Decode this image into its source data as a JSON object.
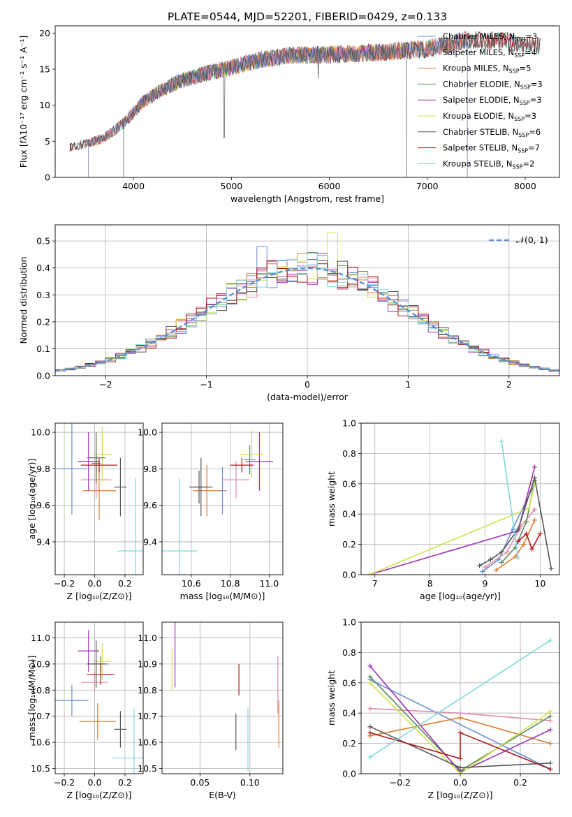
{
  "suptitle": "PLATE=0544, MJD=52201, FIBERID=0429, z=0.133",
  "palette": {
    "Chabrier MILES": "#6a8fd8",
    "Salpeter MILES": "#e08aa8",
    "Kroupa MILES": "#e07b2c",
    "Chabrier ELODIE": "#5a8a5a",
    "Salpeter ELODIE": "#9b30b0",
    "Kroupa ELODIE": "#cfe34a",
    "Chabrier STELIB": "#555555",
    "Salpeter STELIB": "#b01818",
    "Kroupa STELIB": "#80d8dc"
  },
  "chart_data": [
    {
      "id": "spectrum",
      "type": "line",
      "xlabel": "wavelength [Angstrom, rest frame]",
      "ylabel": "Flux [fλ10⁻¹⁷ erg cm⁻² s⁻¹ A⁻¹]",
      "xlim": [
        3200,
        8350
      ],
      "ylim": [
        0,
        21
      ],
      "grid": false,
      "xticks": [
        4000,
        5000,
        6000,
        7000,
        8000
      ],
      "yticks": [
        0,
        5,
        10,
        15,
        20
      ],
      "legend": "top-right",
      "legend_entries": [
        "Chabrier MILES, N",
        "Salpeter MILES, N",
        "Kroupa MILES, N",
        "Chabrier ELODIE, N",
        "Salpeter ELODIE, N",
        "Kroupa ELODIE, N",
        "Chabrier STELIB, N",
        "Salpeter STELIB, N",
        "Kroupa STELIB, N"
      ],
      "legend_sub": "SSP",
      "legend_counts": [
        "=3",
        "=4",
        "=5",
        "=3",
        "=3",
        "=3",
        "=6",
        "=7",
        "=2"
      ],
      "continuum": {
        "x": [
          3350,
          3500,
          3700,
          3900,
          4100,
          4300,
          4500,
          4800,
          5000,
          5300,
          5600,
          6000,
          6500,
          7000,
          7400,
          7800,
          8100
        ],
        "y": [
          4.2,
          4.6,
          5.5,
          7.5,
          10.5,
          12.2,
          13.5,
          14.6,
          15.2,
          16.3,
          16.9,
          17.0,
          17.3,
          17.8,
          19.0,
          18.9,
          18.2
        ]
      }
    },
    {
      "id": "residuals",
      "type": "step",
      "xlabel": "(data-model)/error",
      "ylabel": "Normed distribution",
      "xlim": [
        -2.5,
        2.5
      ],
      "ylim": [
        0,
        0.56
      ],
      "grid": true,
      "xticks": [
        -2,
        -1,
        0,
        1,
        2
      ],
      "xticklabels": [
        "−2",
        "−1",
        "0",
        "1",
        "2"
      ],
      "yticks": [
        0.0,
        0.1,
        0.2,
        0.3,
        0.4,
        0.5
      ],
      "yticklabels": [
        "0.0",
        "0.1",
        "0.2",
        "0.3",
        "0.4",
        "0.5"
      ],
      "legend": "top-right",
      "legend_entry": "𝒩(0, 1)",
      "bin_width": 0.1
    },
    {
      "id": "age_vs_Z",
      "type": "errorbar",
      "xlabel": "Z [log₁₀(Z/Z⊙)]",
      "ylabel": "age  [log₁₀(age/yr)]",
      "xlim": [
        -0.26,
        0.32
      ],
      "ylim": [
        9.22,
        10.05
      ],
      "grid": true,
      "xticks": [
        -0.2,
        0.0,
        0.2
      ],
      "xticklabels": [
        "−0.2",
        "0.0",
        "0.2"
      ],
      "yticks": [
        9.4,
        9.6,
        9.8,
        10.0
      ],
      "yticklabels": [
        "9.4",
        "9.6",
        "9.8",
        "10.0"
      ],
      "points": [
        {
          "model": "Chabrier MILES",
          "x": -0.15,
          "xerr": 0.1,
          "y": 9.8,
          "yerr": 0.25
        },
        {
          "model": "Salpeter MILES",
          "x": 0.01,
          "xerr": 0.1,
          "y": 9.74,
          "yerr": 0.1
        },
        {
          "model": "Kroupa MILES",
          "x": 0.03,
          "xerr": 0.11,
          "y": 9.68,
          "yerr": 0.16
        },
        {
          "model": "Chabrier ELODIE",
          "x": 0.01,
          "xerr": 0.03,
          "y": 9.83,
          "yerr": 0.04
        },
        {
          "model": "Salpeter ELODIE",
          "x": -0.04,
          "xerr": 0.07,
          "y": 9.84,
          "yerr": 0.16
        },
        {
          "model": "Kroupa ELODIE",
          "x": 0.05,
          "xerr": 0.06,
          "y": 9.88,
          "yerr": 0.15
        },
        {
          "model": "Chabrier STELIB",
          "x": 0.17,
          "xerr": 0.04,
          "y": 9.7,
          "yerr": 0.16
        },
        {
          "model": "Salpeter STELIB",
          "x": 0.03,
          "xerr": 0.12,
          "y": 9.82,
          "yerr": 0.04
        },
        {
          "model": "Kroupa STELIB",
          "x": 0.27,
          "xerr": 0.12,
          "y": 9.35,
          "yerr": 0.4
        },
        {
          "model": "Chabrier STELIB",
          "x": 0.01,
          "xerr": 0.06,
          "y": 9.86,
          "yerr": 0.14
        }
      ]
    },
    {
      "id": "age_vs_mass",
      "type": "errorbar",
      "xlabel": "mass [log₁₀(M/M⊙)]",
      "ylabel": "",
      "xlim": [
        10.45,
        11.07
      ],
      "ylim": [
        9.22,
        10.05
      ],
      "grid": true,
      "xticks": [
        10.6,
        10.8,
        11.0
      ],
      "xticklabels": [
        "10.6",
        "10.8",
        "11.0"
      ],
      "yticks": [
        9.4,
        9.6,
        9.8,
        10.0
      ],
      "yticklabels": [
        "9.4",
        "9.6",
        "9.8",
        "10.0"
      ],
      "points": [
        {
          "model": "Chabrier MILES",
          "x": 10.76,
          "xerr": 0.02,
          "y": 9.68,
          "yerr": 0.13
        },
        {
          "model": "Salpeter MILES",
          "x": 10.83,
          "xerr": 0.07,
          "y": 9.74,
          "yerr": 0.1
        },
        {
          "model": "Kroupa MILES",
          "x": 10.68,
          "xerr": 0.07,
          "y": 9.68,
          "yerr": 0.14
        },
        {
          "model": "Chabrier ELODIE",
          "x": 10.9,
          "xerr": 0.03,
          "y": 9.85,
          "yerr": 0.08
        },
        {
          "model": "Salpeter ELODIE",
          "x": 10.95,
          "xerr": 0.07,
          "y": 9.84,
          "yerr": 0.16
        },
        {
          "model": "Kroupa ELODIE",
          "x": 10.91,
          "xerr": 0.06,
          "y": 9.88,
          "yerr": 0.13
        },
        {
          "model": "Chabrier STELIB",
          "x": 10.65,
          "xerr": 0.06,
          "y": 9.7,
          "yerr": 0.16
        },
        {
          "model": "Salpeter STELIB",
          "x": 10.86,
          "xerr": 0.06,
          "y": 9.82,
          "yerr": 0.04
        },
        {
          "model": "Kroupa STELIB",
          "x": 10.54,
          "xerr": 0.09,
          "y": 9.35,
          "yerr": 0.4
        },
        {
          "model": "Chabrier STELIB",
          "x": 10.64,
          "xerr": 0.03,
          "y": 9.7,
          "yerr": 0.09
        }
      ]
    },
    {
      "id": "weight_vs_age",
      "type": "line",
      "xlabel": "age  [log₁₀(age/yr)]",
      "ylabel": "mass weight",
      "xlim": [
        6.75,
        10.35
      ],
      "ylim": [
        0,
        1
      ],
      "grid": true,
      "xticks": [
        7,
        8,
        9,
        10
      ],
      "xticklabels": [
        "7",
        "8",
        "9",
        "10"
      ],
      "yticks": [
        0.0,
        0.2,
        0.4,
        0.6,
        0.8,
        1.0
      ],
      "yticklabels": [
        "0.0",
        "0.2",
        "0.4",
        "0.6",
        "0.8",
        "1.0"
      ],
      "series": [
        {
          "model": "Chabrier MILES",
          "x": [
            8.95,
            9.25,
            9.5,
            9.9
          ],
          "y": [
            0.02,
            0.1,
            0.3,
            0.6
          ]
        },
        {
          "model": "Salpeter MILES",
          "x": [
            9.0,
            9.4,
            9.65,
            9.9
          ],
          "y": [
            0.05,
            0.15,
            0.32,
            0.43
          ]
        },
        {
          "model": "Kroupa MILES",
          "x": [
            9.2,
            9.55,
            9.7,
            9.9
          ],
          "y": [
            0.03,
            0.12,
            0.2,
            0.36
          ]
        },
        {
          "model": "Chabrier ELODIE",
          "x": [
            9.3,
            9.55,
            9.75,
            9.9
          ],
          "y": [
            0.08,
            0.18,
            0.35,
            0.62
          ]
        },
        {
          "model": "Salpeter ELODIE",
          "x": [
            6.9,
            9.6,
            9.9
          ],
          "y": [
            0.0,
            0.29,
            0.71
          ]
        },
        {
          "model": "Kroupa ELODIE",
          "x": [
            6.9,
            9.8,
            9.9
          ],
          "y": [
            0.0,
            0.44,
            0.6
          ]
        },
        {
          "model": "Chabrier STELIB",
          "x": [
            8.9,
            9.1,
            9.3,
            9.6,
            9.9,
            10.2
          ],
          "y": [
            0.06,
            0.1,
            0.15,
            0.3,
            0.64,
            0.04
          ]
        },
        {
          "model": "Salpeter STELIB",
          "x": [
            9.6,
            9.75,
            9.85,
            10.0
          ],
          "y": [
            0.22,
            0.27,
            0.17,
            0.27
          ]
        },
        {
          "model": "Kroupa STELIB",
          "x": [
            9.3,
            9.6
          ],
          "y": [
            0.88,
            0.11
          ]
        }
      ]
    },
    {
      "id": "mass_vs_Z",
      "type": "errorbar",
      "xlabel": "Z [log₁₀(Z/Z⊙)]",
      "ylabel": "mass [log₁₀(M/M⊙)]",
      "xlim": [
        -0.26,
        0.32
      ],
      "ylim": [
        10.48,
        11.06
      ],
      "grid": true,
      "xticks": [
        -0.2,
        0.0,
        0.2
      ],
      "xticklabels": [
        "−0.2",
        "0.0",
        "0.2"
      ],
      "yticks": [
        10.5,
        10.6,
        10.7,
        10.8,
        10.9,
        11.0
      ],
      "yticklabels": [
        "10.5",
        "10.6",
        "10.7",
        "10.8",
        "10.9",
        "11.0"
      ],
      "points": [
        {
          "model": "Chabrier MILES",
          "x": -0.15,
          "xerr": 0.11,
          "y": 10.76,
          "yerr": 0.06
        },
        {
          "model": "Salpeter MILES",
          "x": 0.0,
          "xerr": 0.09,
          "y": 10.83,
          "yerr": 0.04
        },
        {
          "model": "Kroupa MILES",
          "x": 0.02,
          "xerr": 0.12,
          "y": 10.68,
          "yerr": 0.07
        },
        {
          "model": "Chabrier ELODIE",
          "x": 0.04,
          "xerr": 0.05,
          "y": 10.9,
          "yerr": 0.03
        },
        {
          "model": "Salpeter ELODIE",
          "x": -0.04,
          "xerr": 0.07,
          "y": 10.95,
          "yerr": 0.08
        },
        {
          "model": "Kroupa ELODIE",
          "x": 0.05,
          "xerr": 0.06,
          "y": 10.91,
          "yerr": 0.07
        },
        {
          "model": "Chabrier STELIB",
          "x": 0.17,
          "xerr": 0.04,
          "y": 10.65,
          "yerr": 0.07
        },
        {
          "model": "Salpeter STELIB",
          "x": 0.04,
          "xerr": 0.09,
          "y": 10.86,
          "yerr": 0.04
        },
        {
          "model": "Kroupa STELIB",
          "x": 0.26,
          "xerr": 0.14,
          "y": 10.54,
          "yerr": 0.19
        },
        {
          "model": "Chabrier STELIB",
          "x": 0.01,
          "xerr": 0.06,
          "y": 10.9,
          "yerr": 0.09
        }
      ]
    },
    {
      "id": "mass_vs_EBV",
      "type": "errorbar",
      "xlabel": "E(B-V)",
      "ylabel": "",
      "xlim": [
        0.012,
        0.133
      ],
      "ylim": [
        10.48,
        11.06
      ],
      "grid": true,
      "xticks": [
        0.05,
        0.1
      ],
      "xticklabels": [
        "0.05",
        "0.10"
      ],
      "yticks": [
        10.5,
        10.6,
        10.7,
        10.8,
        10.9,
        11.0
      ],
      "yticklabels": [
        "10.5",
        "10.6",
        "10.7",
        "10.8",
        "10.9",
        "11.0"
      ],
      "points": [
        {
          "model": "Kroupa ELODIE",
          "x": 0.022,
          "xerr": 0.0,
          "y": 10.88,
          "yerr": 0.08
        },
        {
          "model": "Salpeter ELODIE",
          "x": 0.025,
          "xerr": 0.0,
          "y": 10.97,
          "yerr": 0.16
        },
        {
          "model": "Chabrier STELIB",
          "x": 0.086,
          "xerr": 0.0,
          "y": 10.64,
          "yerr": 0.07
        },
        {
          "model": "Salpeter STELIB",
          "x": 0.089,
          "xerr": 0.0,
          "y": 10.84,
          "yerr": 0.06
        },
        {
          "model": "Kroupa STELIB",
          "x": 0.098,
          "xerr": 0.0,
          "y": 10.61,
          "yerr": 0.12
        },
        {
          "model": "Salpeter MILES",
          "x": 0.128,
          "xerr": 0.0,
          "y": 10.82,
          "yerr": 0.11
        },
        {
          "model": "Kroupa MILES",
          "x": 0.129,
          "xerr": 0.0,
          "y": 10.67,
          "yerr": 0.09
        }
      ]
    },
    {
      "id": "weight_vs_Z",
      "type": "line",
      "xlabel": "Z [log₁₀(Z/Z⊙)]",
      "ylabel": "mass weight",
      "xlim": [
        -0.33,
        0.33
      ],
      "ylim": [
        0,
        1
      ],
      "grid": true,
      "xticks": [
        -0.2,
        0.0,
        0.2
      ],
      "xticklabels": [
        "−0.2",
        "0.0",
        "0.2"
      ],
      "yticks": [
        0.0,
        0.2,
        0.4,
        0.6,
        0.8,
        1.0
      ],
      "yticklabels": [
        "0.0",
        "0.2",
        "0.4",
        "0.6",
        "0.8",
        "1.0"
      ],
      "series": [
        {
          "model": "Chabrier MILES",
          "x": [
            -0.3,
            0.3
          ],
          "y": [
            0.62,
            0.03
          ]
        },
        {
          "model": "Salpeter MILES",
          "x": [
            -0.3,
            0.0,
            0.3
          ],
          "y": [
            0.43,
            0.4,
            0.35
          ]
        },
        {
          "model": "Kroupa MILES",
          "x": [
            -0.3,
            0.0,
            0.3
          ],
          "y": [
            0.25,
            0.37,
            0.2
          ]
        },
        {
          "model": "Chabrier ELODIE",
          "x": [
            -0.3,
            0.0,
            0.3
          ],
          "y": [
            0.64,
            0.02,
            0.38
          ]
        },
        {
          "model": "Salpeter ELODIE",
          "x": [
            -0.3,
            0.0,
            0.3
          ],
          "y": [
            0.71,
            0.01,
            0.29
          ]
        },
        {
          "model": "Kroupa ELODIE",
          "x": [
            -0.3,
            0.0,
            0.3
          ],
          "y": [
            0.6,
            0.0,
            0.41
          ]
        },
        {
          "model": "Chabrier STELIB",
          "x": [
            -0.3,
            0.0,
            0.3
          ],
          "y": [
            0.31,
            0.04,
            0.07
          ]
        },
        {
          "model": "Salpeter STELIB",
          "x": [
            -0.3,
            0.0,
            0.0,
            0.3
          ],
          "y": [
            0.27,
            0.1,
            0.27,
            0.03
          ]
        },
        {
          "model": "Kroupa STELIB",
          "x": [
            -0.3,
            0.3
          ],
          "y": [
            0.11,
            0.88
          ]
        }
      ]
    }
  ]
}
